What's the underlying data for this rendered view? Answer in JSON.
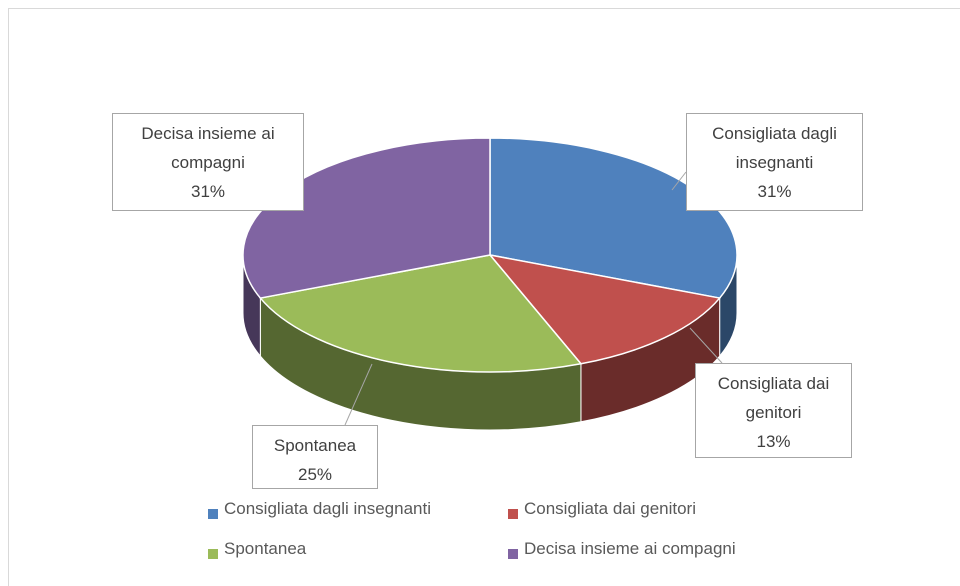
{
  "chart_data": {
    "type": "pie",
    "categories": [
      "Consigliata dagli insegnanti",
      "Consigliata dai genitori",
      "Spontanea",
      "Decisa insieme ai compagni"
    ],
    "values": [
      31,
      13,
      25,
      31
    ],
    "value_labels": [
      "31%",
      "13%",
      "25%",
      "31%"
    ],
    "colors": [
      "#4f81bd",
      "#c0504d",
      "#9bbb59",
      "#8064a2"
    ],
    "legend": "bottom"
  }
}
